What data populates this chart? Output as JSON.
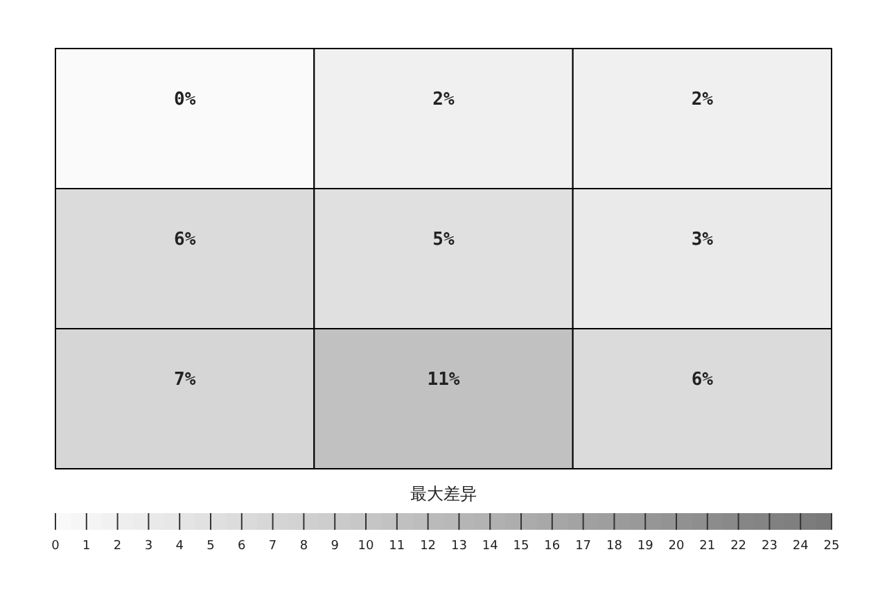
{
  "chart_data": {
    "type": "heatmap",
    "categories": [
      null,
      null,
      null
    ],
    "y_categories": [
      null,
      null,
      null
    ],
    "cells": [
      [
        0,
        2,
        2
      ],
      [
        6,
        5,
        3
      ],
      [
        7,
        11,
        6
      ]
    ],
    "cell_labels": [
      [
        "0%",
        "2%",
        "2%"
      ],
      [
        "6%",
        "5%",
        "3%"
      ],
      [
        "7%",
        "11%",
        "6%"
      ]
    ],
    "clim": [
      0,
      25
    ],
    "cticks": [
      0,
      1,
      2,
      3,
      4,
      5,
      6,
      7,
      8,
      9,
      10,
      11,
      12,
      13,
      14,
      15,
      16,
      17,
      18,
      19,
      20,
      21,
      22,
      23,
      24,
      25
    ],
    "clabel": "最大差异"
  }
}
